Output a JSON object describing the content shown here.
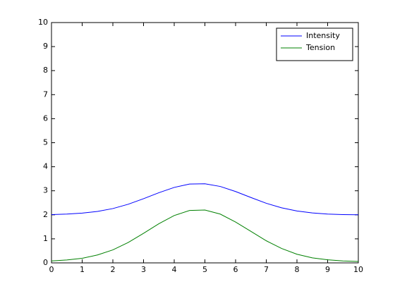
{
  "chart_data": {
    "type": "line",
    "x": [
      0,
      0.5,
      1,
      1.5,
      2,
      2.5,
      3,
      3.5,
      4,
      4.5,
      5,
      5.5,
      6,
      6.5,
      7,
      7.5,
      8,
      8.5,
      9,
      9.5,
      10
    ],
    "series": [
      {
        "name": "Intensity",
        "color": "#0000ff",
        "values": [
          2.01,
          2.03,
          2.07,
          2.14,
          2.26,
          2.44,
          2.67,
          2.92,
          3.14,
          3.28,
          3.29,
          3.18,
          2.97,
          2.72,
          2.48,
          2.29,
          2.16,
          2.08,
          2.03,
          2.01,
          2.0
        ]
      },
      {
        "name": "Tension",
        "color": "#008000",
        "values": [
          0.08,
          0.12,
          0.19,
          0.33,
          0.54,
          0.85,
          1.23,
          1.63,
          1.97,
          2.18,
          2.2,
          2.03,
          1.7,
          1.31,
          0.92,
          0.6,
          0.36,
          0.21,
          0.13,
          0.08,
          0.06
        ]
      }
    ],
    "xlim": [
      0,
      10
    ],
    "xticks": [
      0,
      1,
      2,
      3,
      4,
      5,
      6,
      7,
      8,
      9,
      10
    ],
    "ylim": [
      0,
      10
    ],
    "yticks": [
      0,
      1,
      2,
      3,
      4,
      5,
      6,
      7,
      8,
      9,
      10
    ],
    "grid": false,
    "legend": "northeast"
  }
}
